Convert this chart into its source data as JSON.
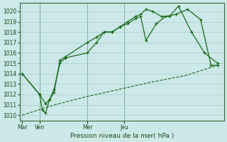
{
  "background_color": "#cce8e8",
  "grid_color": "#aacccc",
  "line_color": "#1a6b1a",
  "title": "Pression niveau de la mer( hPa )",
  "ylim": [
    1009.5,
    1020.8
  ],
  "yticks": [
    1010,
    1011,
    1012,
    1013,
    1014,
    1015,
    1016,
    1017,
    1018,
    1019,
    1020
  ],
  "day_positions": [
    0.0,
    0.133,
    0.5,
    0.783
  ],
  "day_labels": [
    "Mar",
    "Ven",
    "Mer",
    "Jeu"
  ],
  "vline_positions": [
    0.133,
    0.5,
    0.783
  ],
  "series1_x": [
    0.0,
    0.133,
    0.155,
    0.18,
    0.21,
    0.245,
    0.29,
    0.33,
    0.5,
    0.57,
    0.63,
    0.69,
    0.75,
    0.81,
    0.87,
    0.91,
    0.95,
    1.0,
    1.07,
    1.13,
    1.2,
    1.3,
    1.4,
    1.5
  ],
  "series1_y": [
    1014.0,
    1012.0,
    1010.5,
    1010.2,
    1011.5,
    1012.5,
    1015.0,
    1015.5,
    1016.0,
    1017.0,
    1018.0,
    1018.0,
    1018.5,
    1019.0,
    1019.5,
    1019.7,
    1020.2,
    1020.0,
    1019.5,
    1019.5,
    1020.5,
    1018.0,
    1016.0,
    1015.0
  ],
  "series2_x": [
    0.0,
    0.133,
    0.18,
    0.21,
    0.245,
    0.29,
    0.33,
    0.5,
    0.57,
    0.63,
    0.69,
    0.75,
    0.81,
    0.87,
    0.91,
    0.95,
    1.03,
    1.1,
    1.18,
    1.27,
    1.37,
    1.45,
    1.5
  ],
  "series2_y": [
    1014.0,
    1012.0,
    1011.1,
    1011.5,
    1012.2,
    1015.3,
    1015.6,
    1017.0,
    1017.5,
    1018.0,
    1018.0,
    1018.5,
    1018.8,
    1019.3,
    1019.5,
    1017.2,
    1018.8,
    1019.5,
    1019.7,
    1020.2,
    1019.2,
    1014.8,
    1014.8
  ],
  "series3_x": [
    0.0,
    0.25,
    0.5,
    0.75,
    1.0,
    1.25,
    1.5
  ],
  "series3_y": [
    1010.0,
    1011.0,
    1011.8,
    1012.5,
    1013.2,
    1013.8,
    1014.8
  ]
}
